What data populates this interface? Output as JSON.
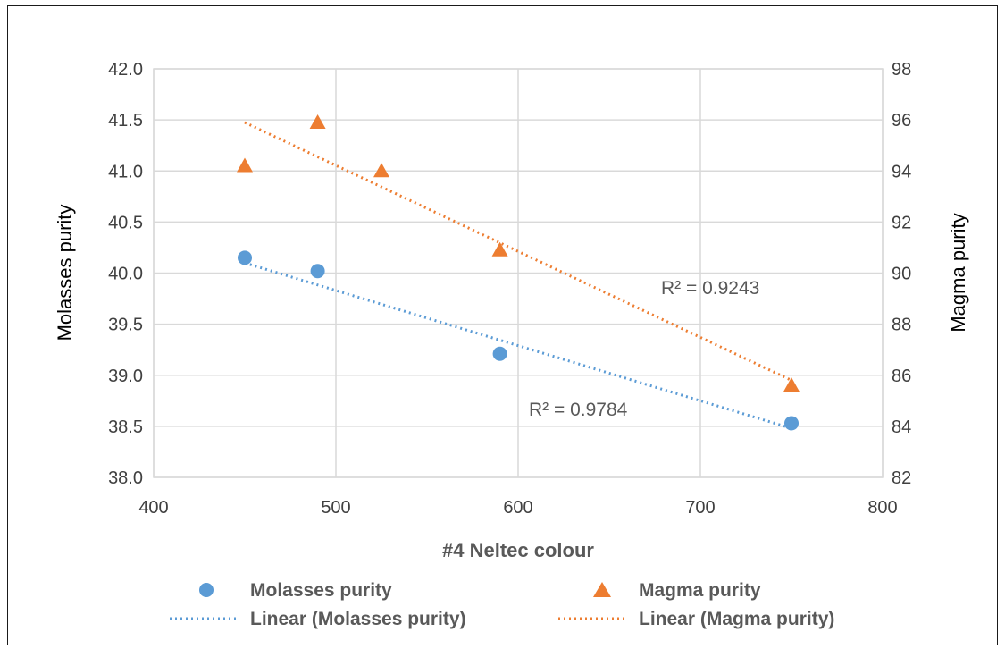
{
  "chart_data": {
    "type": "scatter",
    "xlabel": "#4 Neltec colour",
    "ylabel_left": "Molasses purity",
    "ylabel_right": "Magma purity",
    "xlim": [
      400,
      800
    ],
    "ylim_left": [
      38.0,
      42.0
    ],
    "ylim_right": [
      82,
      98
    ],
    "x_ticks": [
      "400",
      "500",
      "600",
      "700",
      "800"
    ],
    "y_left_ticks": [
      "38.0",
      "38.5",
      "39.0",
      "39.5",
      "40.0",
      "40.5",
      "41.0",
      "41.5",
      "42.0"
    ],
    "y_right_ticks": [
      "82",
      "84",
      "86",
      "88",
      "90",
      "92",
      "94",
      "96",
      "98"
    ],
    "grid": true,
    "legend_position": "bottom",
    "series": [
      {
        "name": "Molasses purity",
        "axis": "left",
        "marker": "circle",
        "color": "#5b9bd5",
        "points": [
          {
            "x": 450,
            "y": 40.15
          },
          {
            "x": 490,
            "y": 40.02
          },
          {
            "x": 590,
            "y": 39.21
          },
          {
            "x": 750,
            "y": 38.53
          }
        ]
      },
      {
        "name": "Magma purity",
        "axis": "right",
        "marker": "triangle",
        "color": "#ed7d31",
        "points": [
          {
            "x": 450,
            "y": 94.2
          },
          {
            "x": 490,
            "y": 95.9
          },
          {
            "x": 525,
            "y": 94.0
          },
          {
            "x": 590,
            "y": 90.9
          },
          {
            "x": 750,
            "y": 85.6
          }
        ]
      }
    ],
    "trendlines": [
      {
        "name": "Linear (Molasses purity)",
        "axis": "left",
        "color": "#5b9bd5",
        "start": {
          "x": 450,
          "y": 40.1
        },
        "end": {
          "x": 750,
          "y": 38.48
        },
        "r2_label": "R² = 0.9784"
      },
      {
        "name": "Linear (Magma purity)",
        "axis": "right",
        "color": "#ed7d31",
        "start": {
          "x": 450,
          "y": 95.9
        },
        "end": {
          "x": 750,
          "y": 85.8
        },
        "r2_label": "R² = 0.9243"
      }
    ]
  }
}
